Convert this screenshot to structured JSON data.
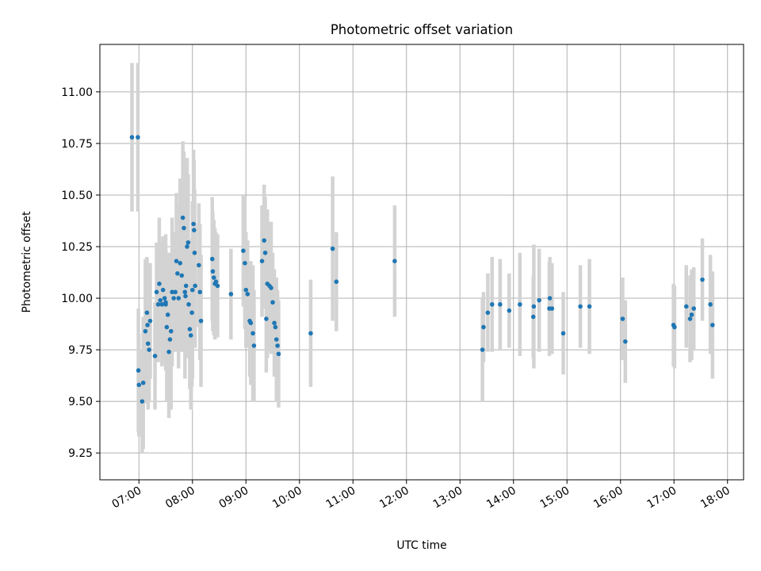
{
  "chart_data": {
    "type": "scatter",
    "title": "Photometric offset variation",
    "xlabel": "UTC time",
    "ylabel": "Photometric offset",
    "x_unit": "hours UTC",
    "xlim": [
      6.27,
      18.3
    ],
    "ylim": [
      9.12,
      11.23
    ],
    "grid": true,
    "legend": "none",
    "x_ticks": [
      {
        "value": 7,
        "label": "07:00"
      },
      {
        "value": 8,
        "label": "08:00"
      },
      {
        "value": 9,
        "label": "09:00"
      },
      {
        "value": 10,
        "label": "10:00"
      },
      {
        "value": 11,
        "label": "11:00"
      },
      {
        "value": 12,
        "label": "12:00"
      },
      {
        "value": 13,
        "label": "13:00"
      },
      {
        "value": 14,
        "label": "14:00"
      },
      {
        "value": 15,
        "label": "15:00"
      },
      {
        "value": 16,
        "label": "16:00"
      },
      {
        "value": 17,
        "label": "17:00"
      },
      {
        "value": 18,
        "label": "18:00"
      }
    ],
    "y_ticks": [
      {
        "value": 9.25,
        "label": "9.25"
      },
      {
        "value": 9.5,
        "label": "9.50"
      },
      {
        "value": 9.75,
        "label": "9.75"
      },
      {
        "value": 10.0,
        "label": "10.00"
      },
      {
        "value": 10.25,
        "label": "10.25"
      },
      {
        "value": 10.5,
        "label": "10.50"
      },
      {
        "value": 10.75,
        "label": "10.75"
      },
      {
        "value": 11.0,
        "label": "11.00"
      }
    ],
    "colors": {
      "point": "#1f77b4",
      "errorbar": "#d3d3d3",
      "grid": "#b0b0b0"
    },
    "series": [
      {
        "x": [
          6.87,
          6.98,
          6.99,
          7.0,
          7.06,
          7.08,
          7.12,
          7.15,
          7.16,
          7.17,
          7.19,
          7.21,
          7.3,
          7.33,
          7.36,
          7.38,
          7.4,
          7.43,
          7.45,
          7.48,
          7.5,
          7.5,
          7.52,
          7.54,
          7.56,
          7.58,
          7.6,
          7.62,
          7.65,
          7.68,
          7.7,
          7.72,
          7.74,
          7.77,
          7.8,
          7.82,
          7.84,
          7.86,
          7.87,
          7.88,
          7.9,
          7.92,
          7.93,
          7.95,
          7.97,
          7.99,
          8.0,
          8.02,
          8.03,
          8.04,
          8.05,
          8.12,
          8.14,
          8.16,
          8.37,
          8.38,
          8.4,
          8.42,
          8.44,
          8.47,
          8.72,
          8.95,
          8.98,
          9.0,
          9.03,
          9.07,
          9.09,
          9.13,
          9.15,
          9.3,
          9.34,
          9.36,
          9.38,
          9.4,
          9.44,
          9.47,
          9.5,
          9.53,
          9.55,
          9.57,
          9.59,
          9.61,
          10.21,
          10.62,
          10.69,
          11.78,
          13.42,
          13.44,
          13.52,
          13.6,
          13.75,
          13.92,
          14.12,
          14.37,
          14.38,
          14.48,
          14.67,
          14.68,
          14.72,
          14.93,
          15.25,
          15.42,
          16.04,
          16.09,
          16.99,
          17.01,
          17.23,
          17.3,
          17.33,
          17.37,
          17.53,
          17.68,
          17.72
        ],
        "y": [
          10.78,
          10.78,
          9.65,
          9.58,
          9.5,
          9.59,
          9.84,
          9.93,
          9.87,
          9.78,
          9.75,
          9.89,
          9.72,
          10.03,
          9.97,
          10.07,
          9.99,
          9.97,
          10.04,
          10.0,
          9.97,
          9.98,
          9.86,
          9.92,
          9.74,
          9.8,
          9.84,
          10.03,
          10.0,
          10.03,
          10.18,
          10.12,
          10.0,
          10.17,
          10.11,
          10.39,
          10.34,
          10.03,
          10.01,
          10.06,
          10.25,
          10.27,
          9.97,
          9.85,
          9.82,
          9.93,
          10.04,
          10.36,
          10.33,
          10.22,
          10.06,
          10.16,
          10.03,
          9.89,
          10.19,
          10.13,
          10.1,
          10.07,
          10.08,
          10.06,
          10.02,
          10.23,
          10.17,
          10.04,
          10.02,
          9.89,
          9.88,
          9.83,
          9.77,
          10.18,
          10.28,
          10.22,
          9.9,
          10.07,
          10.06,
          10.05,
          9.98,
          9.88,
          9.86,
          9.8,
          9.77,
          9.73,
          9.83,
          10.24,
          10.08,
          10.18,
          9.75,
          9.86,
          9.93,
          9.97,
          9.97,
          9.94,
          9.97,
          9.91,
          9.96,
          9.99,
          9.95,
          10.0,
          9.95,
          9.83,
          9.96,
          9.96,
          9.9,
          9.79,
          9.87,
          9.86,
          9.96,
          9.9,
          9.92,
          9.95,
          10.09,
          9.97,
          9.87
        ],
        "yerr": [
          0.36,
          0.36,
          0.3,
          0.25,
          0.25,
          0.32,
          0.35,
          0.27,
          0.28,
          0.32,
          0.25,
          0.28,
          0.26,
          0.24,
          0.28,
          0.32,
          0.25,
          0.3,
          0.26,
          0.3,
          0.28,
          0.33,
          0.36,
          0.3,
          0.32,
          0.31,
          0.38,
          0.36,
          0.26,
          0.29,
          0.33,
          0.33,
          0.34,
          0.41,
          0.37,
          0.37,
          0.37,
          0.42,
          0.28,
          0.35,
          0.43,
          0.33,
          0.26,
          0.29,
          0.36,
          0.36,
          0.43,
          0.36,
          0.34,
          0.31,
          0.3,
          0.3,
          0.33,
          0.32,
          0.3,
          0.29,
          0.28,
          0.27,
          0.24,
          0.25,
          0.22,
          0.27,
          0.32,
          0.28,
          0.26,
          0.27,
          0.3,
          0.33,
          0.27,
          0.27,
          0.27,
          0.27,
          0.26,
          0.36,
          0.31,
          0.32,
          0.24,
          0.26,
          0.24,
          0.3,
          0.27,
          0.26,
          0.26,
          0.35,
          0.24,
          0.27,
          0.25,
          0.17,
          0.19,
          0.23,
          0.22,
          0.18,
          0.25,
          0.2,
          0.3,
          0.25,
          0.23,
          0.2,
          0.22,
          0.2,
          0.2,
          0.23,
          0.2,
          0.2,
          0.2,
          0.2,
          0.2,
          0.21,
          0.22,
          0.2,
          0.2,
          0.24,
          0.26
        ]
      }
    ]
  }
}
